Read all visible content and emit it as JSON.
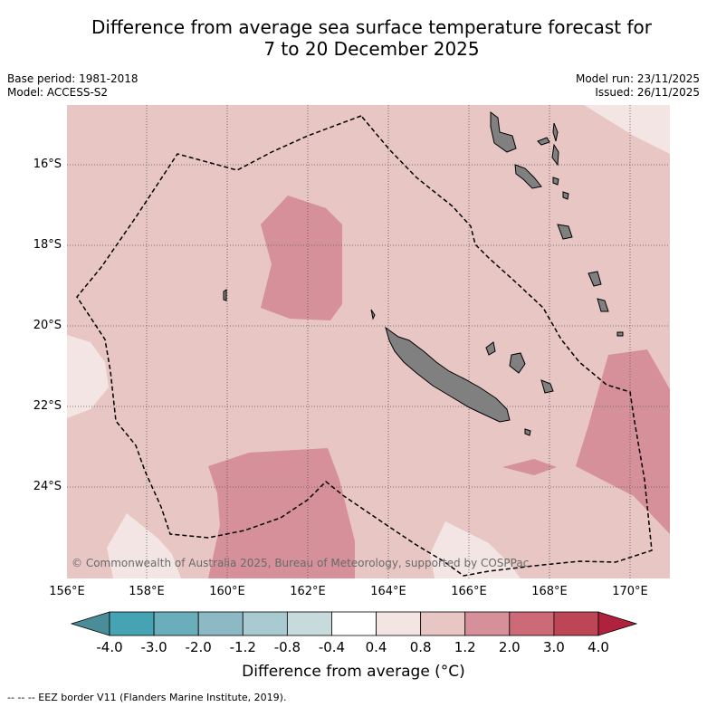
{
  "title": {
    "line1": "Difference from average sea surface temperature forecast for",
    "line2": "7 to 20 December 2025"
  },
  "meta": {
    "base_period": "Base period: 1981-2018",
    "model": "Model: ACCESS-S2",
    "model_run": "Model run: 23/11/2025",
    "issued": "Issued: 26/11/2025"
  },
  "map": {
    "lat_labels": [
      "16°S",
      "18°S",
      "20°S",
      "22°S",
      "24°S"
    ],
    "lon_labels": [
      "156°E",
      "158°E",
      "160°E",
      "162°E",
      "164°E",
      "166°E",
      "168°E",
      "170°E"
    ],
    "copyright": "© Commonwealth of Australia 2025, Bureau of Meteorology, supported by COSPPac",
    "colors": {
      "background_anomaly": "#e7c6c3",
      "mid_anomaly": "#d5909a",
      "low_anomaly": "#f3e5e4",
      "land": "#808080",
      "grid": "#555555"
    }
  },
  "colorbar": {
    "title": "Difference from average (°C)",
    "tick_labels": [
      "-4.0",
      "-3.0",
      "-2.0",
      "-1.2",
      "-0.8",
      "-0.4",
      "0.4",
      "0.8",
      "1.2",
      "2.0",
      "3.0",
      "4.0"
    ],
    "colors": [
      "#4a8c98",
      "#46a3b3",
      "#6aadbb",
      "#8db9c4",
      "#a9cad0",
      "#c8dbdc",
      "#ffffff",
      "#f3e5e4",
      "#e7c6c3",
      "#d5909a",
      "#cc6b77",
      "#be4556",
      "#b0213d"
    ]
  },
  "footnote": "--  --  -- EEZ border V11 (Flanders Marine Institute, 2019)."
}
